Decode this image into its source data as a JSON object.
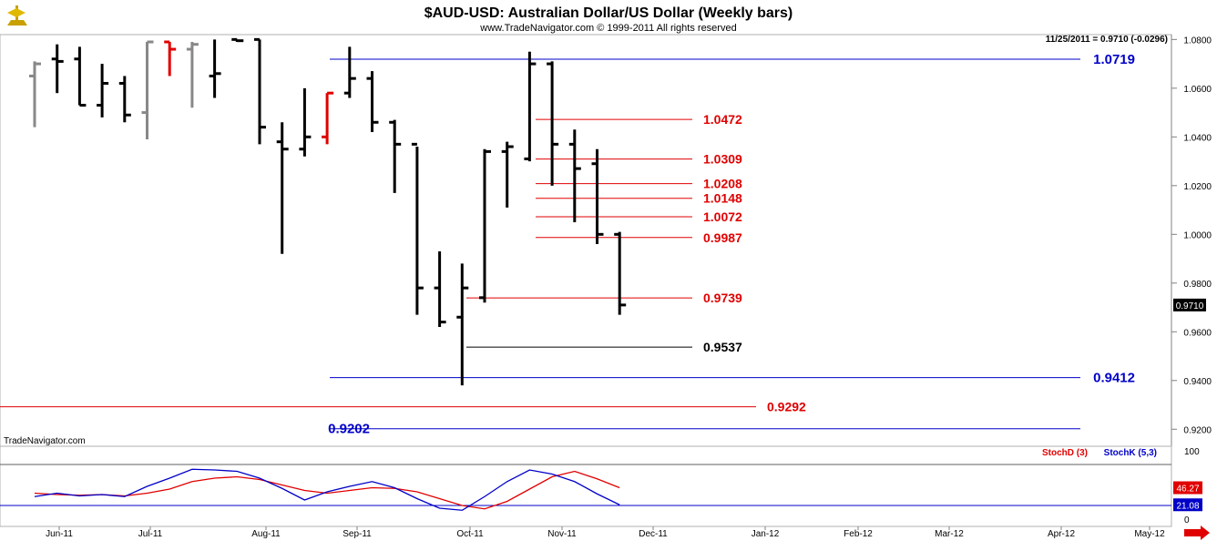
{
  "header": {
    "title": "$AUD-USD:  Australian Dollar/US Dollar  (Weekly bars)",
    "copyright": "www.TradeNavigator.com © 1999-2011 All rights reserved",
    "last_quote": "11/25/2011 = 0.9710 (-0.0296)",
    "brand_label": "TradeNavigator.com",
    "logo_icon": "trade-navigator-logo-icon",
    "scroll_icon": "scroll-right-arrow-icon"
  },
  "colors": {
    "bar_black": "#000000",
    "bar_red": "#e00000",
    "bar_gray": "#888888",
    "level_red": "#e00000",
    "level_blue": "#0000c8",
    "level_black": "#000000",
    "stoch_d": "#e00000",
    "stoch_k": "#0000c8"
  },
  "chart_data": [
    {
      "type": "ohlc",
      "title": "$AUD-USD:  Australian Dollar/US Dollar  (Weekly bars)",
      "ylim": [
        0.913,
        1.082
      ],
      "y_ticks": [
        "1.0800",
        "1.0600",
        "1.0400",
        "1.0200",
        "1.0000",
        "0.9800",
        "0.9600",
        "0.9400",
        "0.9200"
      ],
      "y_tick_values": [
        1.08,
        1.06,
        1.04,
        1.02,
        1.0,
        0.98,
        0.96,
        0.94,
        0.92
      ],
      "x_labels": [
        "Jun-11",
        "Jul-11",
        "Aug-11",
        "Sep-11",
        "Oct-11",
        "Nov-11",
        "Dec-11",
        "Jan-12",
        "Feb-12",
        "Mar-12",
        "Apr-12",
        "May-12"
      ],
      "last_price_label": "0.9710",
      "last_price": 0.971,
      "bars": [
        {
          "o": 1.065,
          "h": 1.071,
          "l": 1.044,
          "c": 1.07,
          "color": "gray"
        },
        {
          "o": 1.072,
          "h": 1.078,
          "l": 1.058,
          "c": 1.071,
          "color": "black"
        },
        {
          "o": 1.072,
          "h": 1.077,
          "l": 1.053,
          "c": 1.053,
          "color": "black"
        },
        {
          "o": 1.053,
          "h": 1.07,
          "l": 1.048,
          "c": 1.062,
          "color": "black"
        },
        {
          "o": 1.062,
          "h": 1.065,
          "l": 1.046,
          "c": 1.049,
          "color": "black"
        },
        {
          "o": 1.05,
          "h": 1.079,
          "l": 1.039,
          "c": 1.079,
          "color": "gray"
        },
        {
          "o": 1.079,
          "h": 1.079,
          "l": 1.065,
          "c": 1.076,
          "color": "red"
        },
        {
          "o": 1.076,
          "h": 1.079,
          "l": 1.052,
          "c": 1.078,
          "color": "gray"
        },
        {
          "o": 1.065,
          "h": 1.08,
          "l": 1.056,
          "c": 1.066,
          "color": "black"
        },
        {
          "o": 1.08,
          "h": 1.08,
          "l": 1.079,
          "c": 1.0795,
          "color": "black"
        },
        {
          "o": 1.08,
          "h": 1.08,
          "l": 1.037,
          "c": 1.044,
          "color": "black"
        },
        {
          "o": 1.038,
          "h": 1.046,
          "l": 0.992,
          "c": 1.035,
          "color": "black"
        },
        {
          "o": 1.035,
          "h": 1.06,
          "l": 1.032,
          "c": 1.04,
          "color": "black"
        },
        {
          "o": 1.04,
          "h": 1.058,
          "l": 1.037,
          "c": 1.058,
          "color": "red"
        },
        {
          "o": 1.058,
          "h": 1.077,
          "l": 1.056,
          "c": 1.064,
          "color": "black"
        },
        {
          "o": 1.064,
          "h": 1.067,
          "l": 1.042,
          "c": 1.046,
          "color": "black"
        },
        {
          "o": 1.046,
          "h": 1.047,
          "l": 1.017,
          "c": 1.037,
          "color": "black"
        },
        {
          "o": 1.037,
          "h": 1.036,
          "l": 0.967,
          "c": 0.978,
          "color": "black"
        },
        {
          "o": 0.978,
          "h": 0.993,
          "l": 0.962,
          "c": 0.964,
          "color": "black"
        },
        {
          "o": 0.966,
          "h": 0.988,
          "l": 0.938,
          "c": 0.978,
          "color": "black"
        },
        {
          "o": 0.974,
          "h": 1.035,
          "l": 0.972,
          "c": 1.034,
          "color": "black"
        },
        {
          "o": 1.034,
          "h": 1.038,
          "l": 1.011,
          "c": 1.036,
          "color": "black"
        },
        {
          "o": 1.031,
          "h": 1.075,
          "l": 1.03,
          "c": 1.07,
          "color": "black"
        },
        {
          "o": 1.07,
          "h": 1.071,
          "l": 1.02,
          "c": 1.037,
          "color": "black"
        },
        {
          "o": 1.037,
          "h": 1.043,
          "l": 1.005,
          "c": 1.027,
          "color": "black"
        },
        {
          "o": 1.029,
          "h": 1.035,
          "l": 0.996,
          "c": 1.0,
          "color": "black"
        },
        {
          "o": 1.0,
          "h": 1.001,
          "l": 0.967,
          "c": 0.971,
          "color": "black"
        }
      ],
      "levels": [
        {
          "label": "1.0719",
          "value": 1.0719,
          "color": "blue",
          "x_from": "Sep-11",
          "x_to": "right-edge",
          "label_pos": "right"
        },
        {
          "label": "1.0472",
          "value": 1.0472,
          "color": "red",
          "x_from": "Nov-11",
          "x_to": "Dec-11+",
          "label_pos": "end"
        },
        {
          "label": "1.0309",
          "value": 1.0309,
          "color": "red",
          "x_from": "Nov-11",
          "x_to": "Dec-11+",
          "label_pos": "end"
        },
        {
          "label": "1.0208",
          "value": 1.0208,
          "color": "red",
          "x_from": "Nov-11",
          "x_to": "Dec-11+",
          "label_pos": "end"
        },
        {
          "label": "1.0148",
          "value": 1.0148,
          "color": "red",
          "x_from": "Nov-11",
          "x_to": "Dec-11+",
          "label_pos": "end"
        },
        {
          "label": "1.0072",
          "value": 1.0072,
          "color": "red",
          "x_from": "Nov-11",
          "x_to": "Dec-11+",
          "label_pos": "end"
        },
        {
          "label": "0.9987",
          "value": 0.9987,
          "color": "red",
          "x_from": "Nov-11",
          "x_to": "Dec-11+",
          "label_pos": "end"
        },
        {
          "label": "0.9739",
          "value": 0.9739,
          "color": "red",
          "x_from": "Oct-11",
          "x_to": "Dec-11+",
          "label_pos": "end"
        },
        {
          "label": "0.9537",
          "value": 0.9537,
          "color": "black",
          "x_from": "Oct-11",
          "x_to": "Dec-11+",
          "label_pos": "end"
        },
        {
          "label": "0.9412",
          "value": 0.9412,
          "color": "blue",
          "x_from": "Sep-11",
          "x_to": "right-edge",
          "label_pos": "right"
        },
        {
          "label": "0.9292",
          "value": 0.9292,
          "color": "red",
          "x_from": "left-edge",
          "x_to": "Jan-12",
          "label_pos": "end"
        },
        {
          "label": "0.9202",
          "value": 0.9202,
          "color": "blue",
          "x_from": "Sep-11",
          "x_to": "right-edge",
          "label_pos": "left"
        }
      ]
    },
    {
      "type": "line",
      "title": "",
      "ylim": [
        0,
        100
      ],
      "y_ticks": [
        "100",
        "50",
        "0"
      ],
      "y_tick_values": [
        100,
        50,
        0
      ],
      "reference_lines": [
        80,
        20
      ],
      "series": [
        {
          "name": "StochD (3)",
          "color": "red",
          "last_label": "46.27",
          "values": [
            38,
            36,
            35,
            36,
            34,
            38,
            44,
            55,
            60,
            62,
            58,
            50,
            42,
            38,
            42,
            46,
            45,
            40,
            30,
            20,
            15,
            26,
            44,
            62,
            70,
            59,
            46
          ]
        },
        {
          "name": "StochK (5,3)",
          "color": "blue",
          "last_label": "21.08",
          "values": [
            33,
            38,
            34,
            36,
            33,
            48,
            60,
            73,
            72,
            70,
            60,
            45,
            28,
            40,
            48,
            55,
            46,
            30,
            16,
            13,
            33,
            55,
            72,
            66,
            55,
            37,
            21
          ]
        }
      ]
    }
  ]
}
